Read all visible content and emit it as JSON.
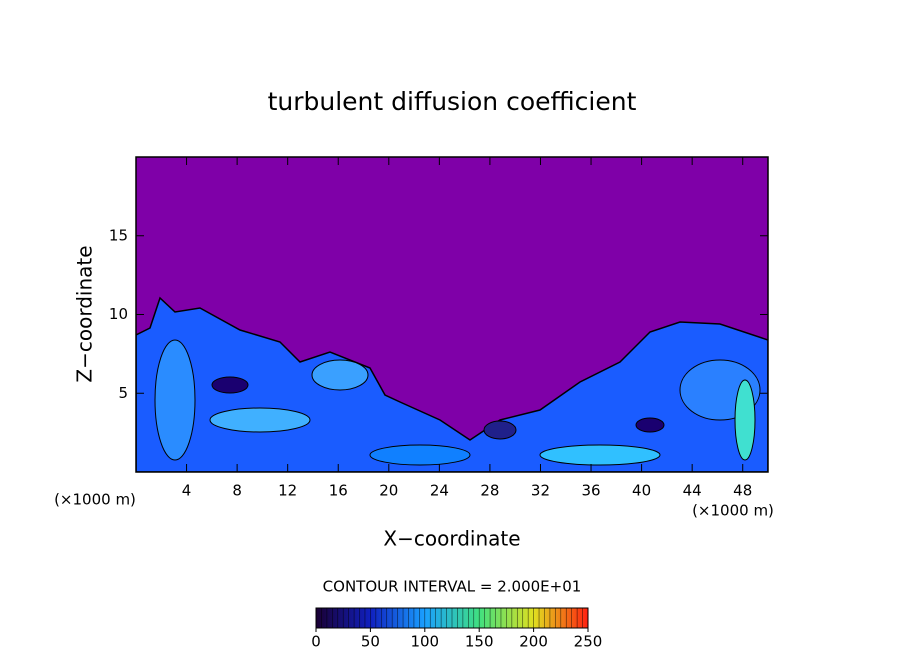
{
  "chart_data": {
    "type": "contour",
    "title": "turbulent diffusion coefficient",
    "xlabel": "X−coordinate",
    "ylabel": "Z−coordinate",
    "x_unit": "(×1000 m)",
    "y_unit": "(×1000 m)",
    "xlim": [
      0,
      50
    ],
    "ylim": [
      0,
      20
    ],
    "xticks": [
      4,
      8,
      12,
      16,
      20,
      24,
      28,
      32,
      36,
      40,
      44,
      48
    ],
    "yticks": [
      5,
      10,
      15
    ],
    "background_color": "#7f00a8",
    "contour_interval_label": "CONTOUR INTERVAL = 2.000E+01",
    "colorbar": {
      "lim": [
        0,
        250
      ],
      "ticks": [
        0,
        50,
        100,
        150,
        200,
        250
      ],
      "colors": [
        "#1a0033",
        "#1020c0",
        "#1aa0ff",
        "#40e080",
        "#e0e020",
        "#ff2010"
      ]
    }
  }
}
